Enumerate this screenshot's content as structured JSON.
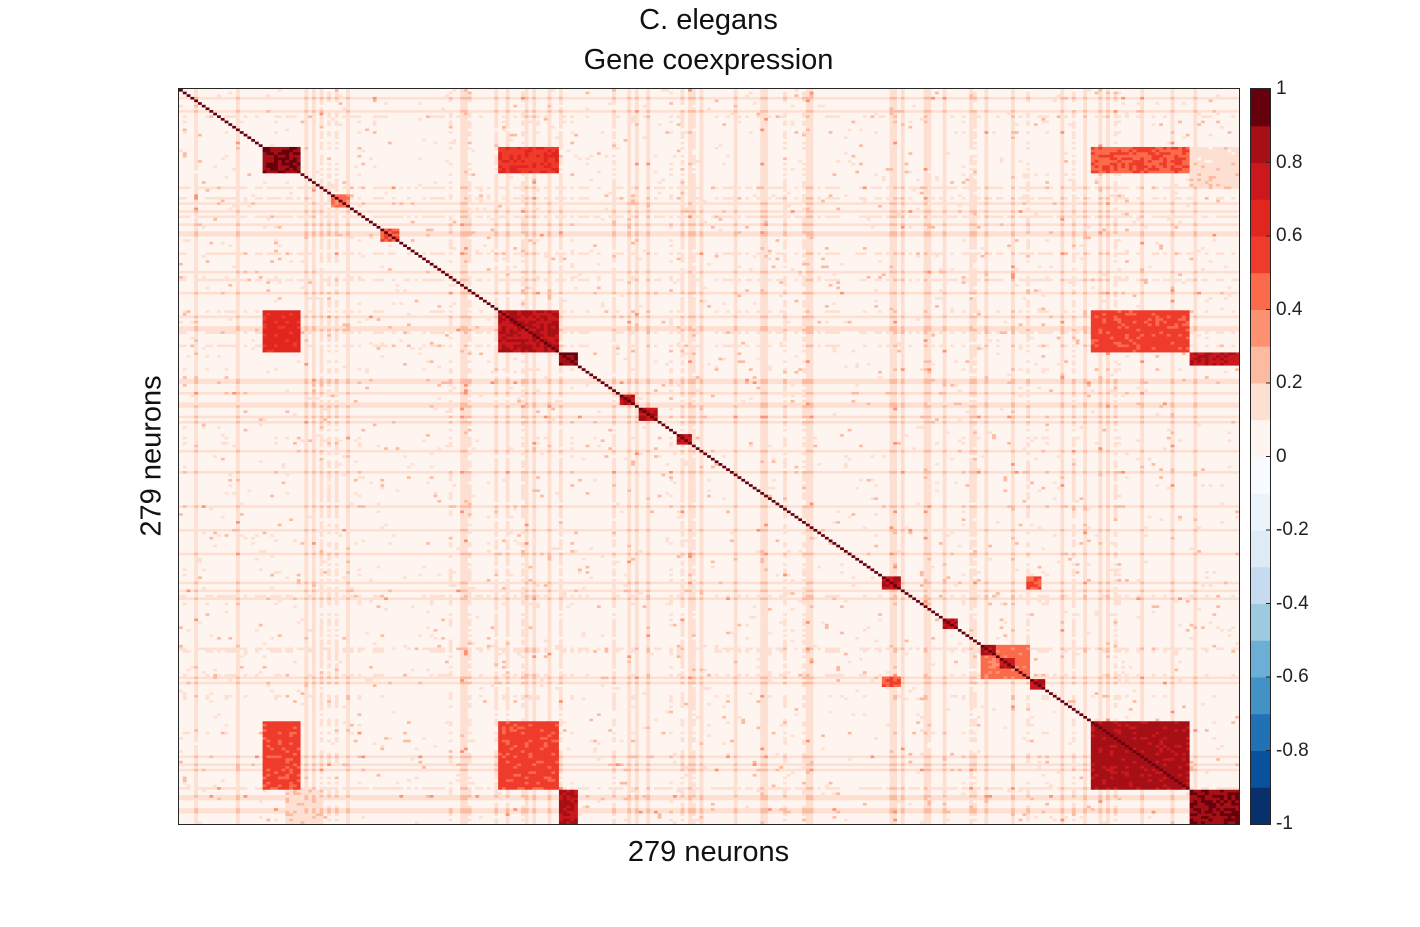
{
  "title_line1": "C. elegans",
  "title_line2": "Gene coexpression",
  "chart_data": {
    "type": "heatmap",
    "title": "C. elegans Gene coexpression",
    "xlabel": "279 neurons",
    "ylabel": "279 neurons",
    "n_rows": 279,
    "n_cols": 279,
    "x_ticks": [],
    "y_ticks": [],
    "colorbar": {
      "min": -1,
      "max": 1,
      "levels": 20,
      "tick_values": [
        1,
        0.8,
        0.6,
        0.4,
        0.2,
        0,
        -0.2,
        -0.4,
        -0.6,
        -0.8,
        -1
      ],
      "tick_labels": [
        "1",
        "0.8",
        "0.6",
        "0.4",
        "0.2",
        "0",
        "-0.2",
        "-0.4",
        "-0.6",
        "-0.8",
        "-1"
      ],
      "colors": [
        "#08306b",
        "#08519c",
        "#2171b5",
        "#4292c6",
        "#6baed6",
        "#9ecae1",
        "#c6dbef",
        "#deebf7",
        "#ecf4fb",
        "#f7fbff",
        "#fff5f0",
        "#fee0d2",
        "#fcbba1",
        "#fc9272",
        "#fb6a4a",
        "#ef3b2c",
        "#e0261f",
        "#cb181d",
        "#a50f15",
        "#67000d"
      ]
    },
    "diagonal_value": 1,
    "background_value": 0.03,
    "blocks": [
      {
        "r0": 22,
        "r1": 32,
        "c0": 22,
        "c1": 32,
        "value": 0.95
      },
      {
        "r0": 22,
        "r1": 32,
        "c0": 84,
        "c1": 100,
        "value": 0.65
      },
      {
        "r0": 22,
        "r1": 32,
        "c0": 240,
        "c1": 266,
        "value": 0.55
      },
      {
        "r0": 22,
        "r1": 32,
        "c0": 266,
        "c1": 279,
        "value": 0.2
      },
      {
        "r0": 84,
        "r1": 100,
        "c0": 22,
        "c1": 32,
        "value": 0.7
      },
      {
        "r0": 84,
        "r1": 100,
        "c0": 84,
        "c1": 100,
        "value": 0.85
      },
      {
        "r0": 84,
        "r1": 100,
        "c0": 240,
        "c1": 266,
        "value": 0.6
      },
      {
        "r0": 240,
        "r1": 266,
        "c0": 22,
        "c1": 32,
        "value": 0.6
      },
      {
        "r0": 240,
        "r1": 266,
        "c0": 84,
        "c1": 100,
        "value": 0.6
      },
      {
        "r0": 240,
        "r1": 266,
        "c0": 240,
        "c1": 266,
        "value": 0.9
      },
      {
        "r0": 100,
        "r1": 105,
        "c0": 100,
        "c1": 105,
        "value": 0.95
      },
      {
        "r0": 100,
        "r1": 105,
        "c0": 266,
        "c1": 279,
        "value": 0.85
      },
      {
        "r0": 266,
        "r1": 279,
        "c0": 100,
        "c1": 105,
        "value": 0.85
      },
      {
        "r0": 266,
        "r1": 279,
        "c0": 266,
        "c1": 279,
        "value": 0.95
      },
      {
        "r0": 266,
        "r1": 279,
        "c0": 28,
        "c1": 38,
        "value": 0.22
      },
      {
        "r0": 28,
        "r1": 38,
        "c0": 266,
        "c1": 279,
        "value": 0.22
      },
      {
        "r0": 40,
        "r1": 45,
        "c0": 40,
        "c1": 45,
        "value": 0.5
      },
      {
        "r0": 53,
        "r1": 58,
        "c0": 53,
        "c1": 58,
        "value": 0.55
      },
      {
        "r0": 116,
        "r1": 120,
        "c0": 116,
        "c1": 120,
        "value": 0.85
      },
      {
        "r0": 121,
        "r1": 126,
        "c0": 121,
        "c1": 126,
        "value": 0.85
      },
      {
        "r0": 131,
        "r1": 135,
        "c0": 131,
        "c1": 135,
        "value": 0.85
      },
      {
        "r0": 185,
        "r1": 190,
        "c0": 185,
        "c1": 190,
        "value": 0.85
      },
      {
        "r0": 201,
        "r1": 205,
        "c0": 201,
        "c1": 205,
        "value": 0.85
      },
      {
        "r0": 211,
        "r1": 224,
        "c0": 211,
        "c1": 224,
        "value": 0.5
      },
      {
        "r0": 211,
        "r1": 215,
        "c0": 211,
        "c1": 215,
        "value": 0.9
      },
      {
        "r0": 216,
        "r1": 220,
        "c0": 216,
        "c1": 220,
        "value": 0.85
      },
      {
        "r0": 224,
        "r1": 228,
        "c0": 224,
        "c1": 228,
        "value": 0.85
      },
      {
        "r0": 185,
        "r1": 190,
        "c0": 223,
        "c1": 227,
        "value": 0.55
      },
      {
        "r0": 223,
        "r1": 227,
        "c0": 185,
        "c1": 190,
        "value": 0.55
      }
    ]
  }
}
